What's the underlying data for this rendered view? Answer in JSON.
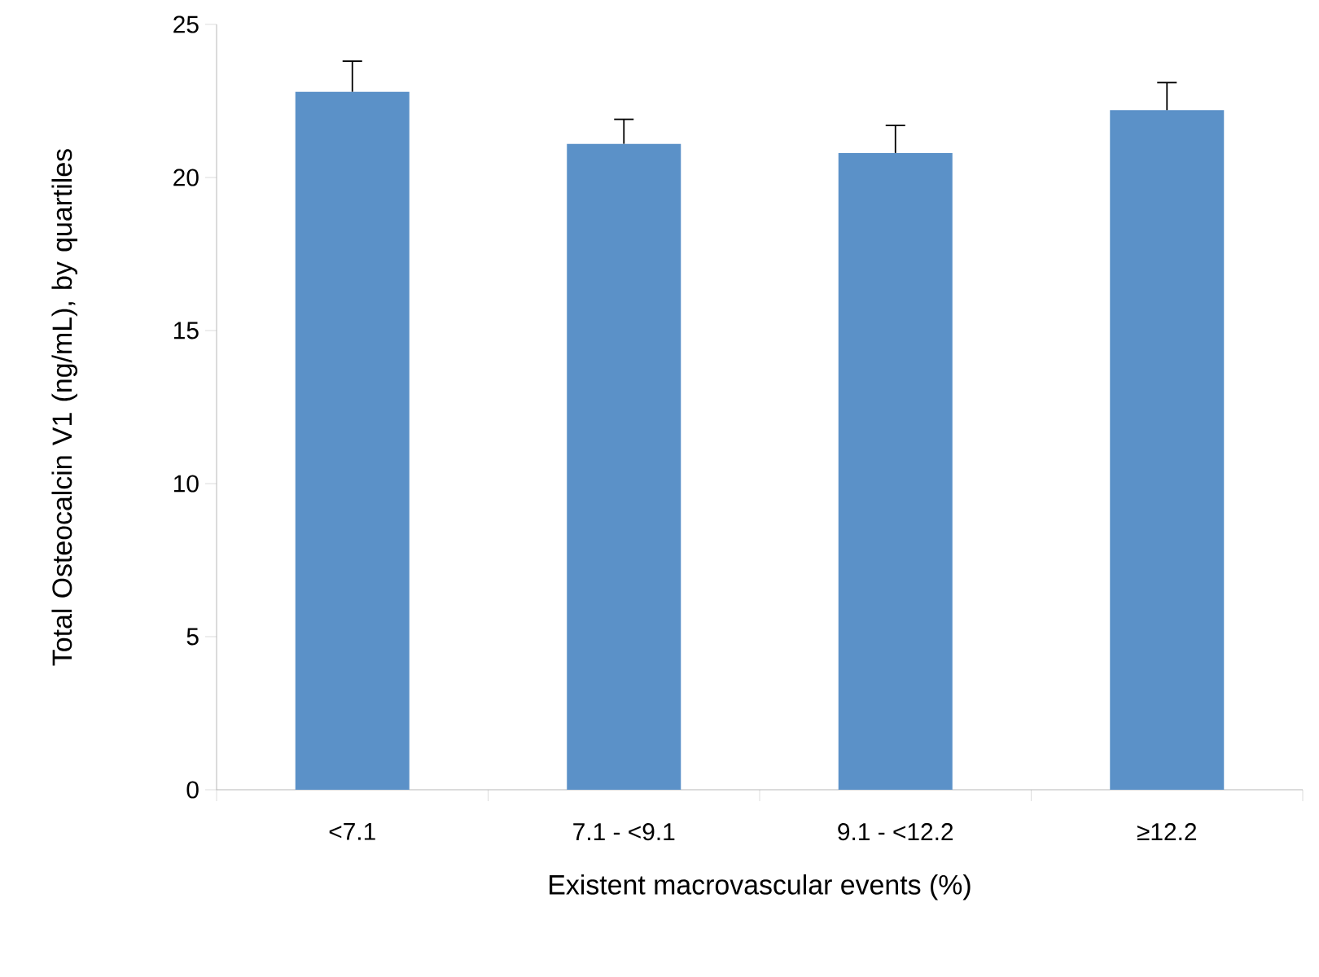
{
  "chart_data": {
    "type": "bar",
    "xlabel": "Existent macrovascular events (%)",
    "ylabel": "Total Osteocalcin V1 (ng/mL), by quartiles",
    "categories": [
      "<7.1",
      "7.1 - <9.1",
      "9.1 - <12.2",
      "≥12.2"
    ],
    "values": [
      22.8,
      21.1,
      20.8,
      22.2
    ],
    "errors": [
      [
        22.8,
        23.8
      ],
      [
        21.1,
        21.9
      ],
      [
        20.8,
        21.7
      ],
      [
        22.2,
        23.1
      ]
    ],
    "color": "#5b91c8",
    "ylim": [
      0,
      25
    ],
    "yticks": [
      0,
      5,
      10,
      15,
      20,
      25
    ],
    "grid": false
  }
}
